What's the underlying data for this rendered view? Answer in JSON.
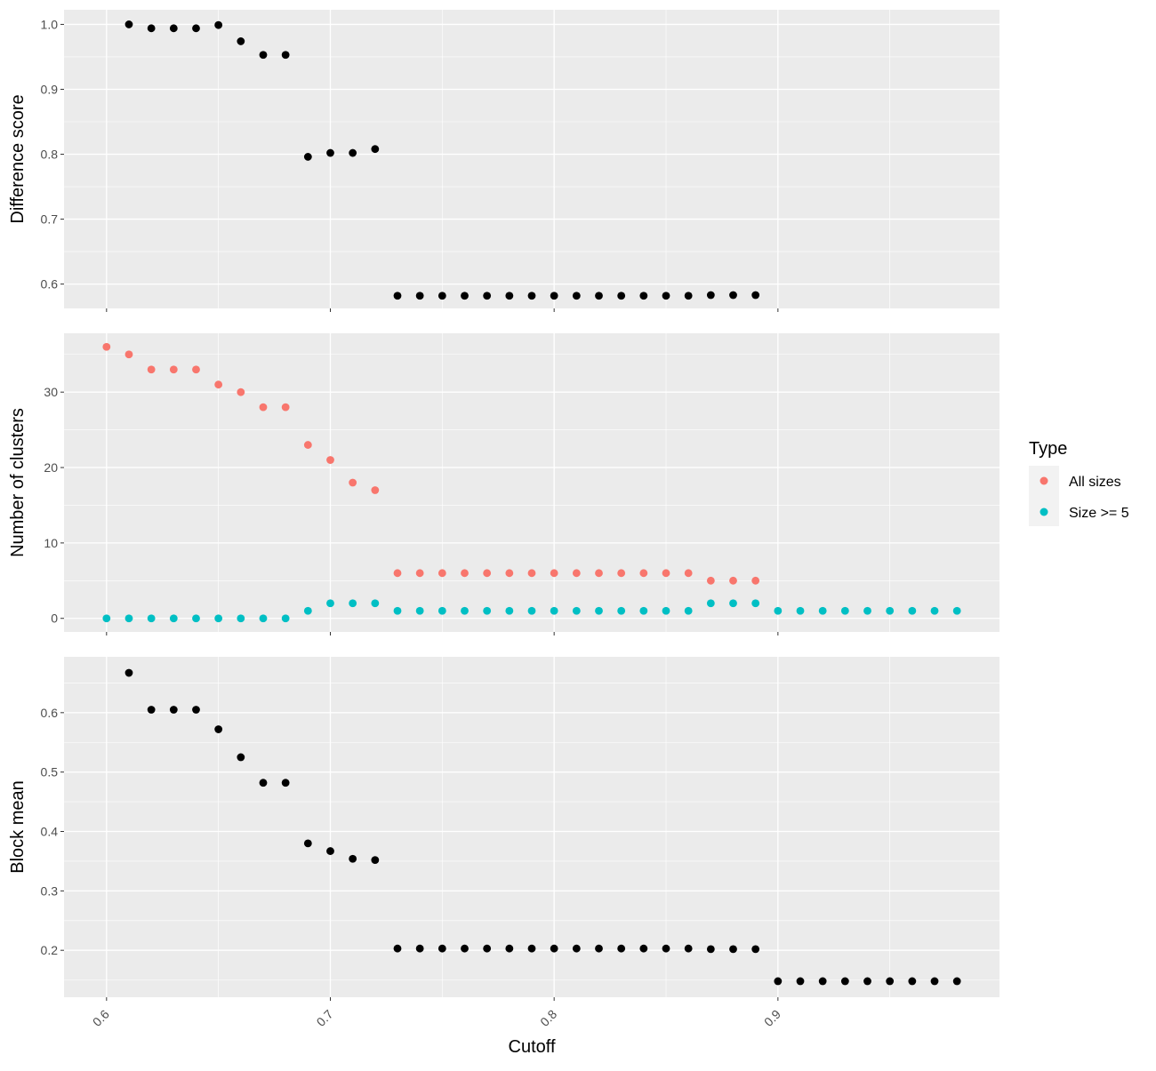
{
  "chart_data": {
    "type": "scatter",
    "layout": "vertical-facets",
    "x_label": "Cutoff",
    "x_ticks": [
      0.6,
      0.7,
      0.8,
      0.9
    ],
    "x_range": [
      0.581,
      0.999
    ],
    "legend": {
      "title": "Type",
      "placement": "right",
      "entries": [
        {
          "label": "All sizes",
          "color": "#F8766D"
        },
        {
          "label": "Size >= 5",
          "color": "#00BFC4"
        }
      ]
    },
    "background": "#EBEBEB",
    "grid": true,
    "panels": [
      {
        "ylabel": "Difference score",
        "ylim": [
          0.5625,
          1.0225
        ],
        "y_ticks": [
          0.6,
          0.7,
          0.8,
          0.9,
          1.0
        ],
        "y_tick_labels": [
          "0.6",
          "0.7",
          "0.8",
          "0.9",
          "1.0"
        ],
        "series": [
          {
            "color": "#000000",
            "x": [
              0.61,
              0.62,
              0.63,
              0.64,
              0.65,
              0.66,
              0.67,
              0.68,
              0.69,
              0.7,
              0.71,
              0.72,
              0.73,
              0.74,
              0.75,
              0.76,
              0.77,
              0.78,
              0.79,
              0.8,
              0.81,
              0.82,
              0.83,
              0.84,
              0.85,
              0.86,
              0.87,
              0.88,
              0.89
            ],
            "y": [
              1.0,
              0.994,
              0.994,
              0.994,
              0.999,
              0.974,
              0.953,
              0.953,
              0.796,
              0.802,
              0.802,
              0.808,
              0.582,
              0.582,
              0.582,
              0.582,
              0.582,
              0.582,
              0.582,
              0.582,
              0.582,
              0.582,
              0.582,
              0.582,
              0.582,
              0.582,
              0.583,
              0.583,
              0.583
            ]
          }
        ]
      },
      {
        "ylabel": "Number of clusters",
        "ylim": [
          -1.8,
          37.8
        ],
        "y_ticks": [
          0,
          10,
          20,
          30
        ],
        "y_tick_labels": [
          "0",
          "10",
          "20",
          "30"
        ],
        "series": [
          {
            "name": "All sizes",
            "color": "#F8766D",
            "x": [
              0.6,
              0.61,
              0.62,
              0.63,
              0.64,
              0.65,
              0.66,
              0.67,
              0.68,
              0.69,
              0.7,
              0.71,
              0.72,
              0.73,
              0.74,
              0.75,
              0.76,
              0.77,
              0.78,
              0.79,
              0.8,
              0.81,
              0.82,
              0.83,
              0.84,
              0.85,
              0.86,
              0.87,
              0.88,
              0.89
            ],
            "y": [
              36,
              35,
              33,
              33,
              33,
              31,
              30,
              28,
              28,
              23,
              21,
              18,
              17,
              6,
              6,
              6,
              6,
              6,
              6,
              6,
              6,
              6,
              6,
              6,
              6,
              6,
              6,
              5,
              5,
              5
            ]
          },
          {
            "name": "Size >= 5",
            "color": "#00BFC4",
            "x": [
              0.6,
              0.61,
              0.62,
              0.63,
              0.64,
              0.65,
              0.66,
              0.67,
              0.68,
              0.69,
              0.7,
              0.71,
              0.72,
              0.73,
              0.74,
              0.75,
              0.76,
              0.77,
              0.78,
              0.79,
              0.8,
              0.81,
              0.82,
              0.83,
              0.84,
              0.85,
              0.86,
              0.87,
              0.88,
              0.89,
              0.9,
              0.91,
              0.92,
              0.93,
              0.94,
              0.95,
              0.96,
              0.97,
              0.98
            ],
            "y": [
              0,
              0,
              0,
              0,
              0,
              0,
              0,
              0,
              0,
              1,
              2,
              2,
              2,
              1,
              1,
              1,
              1,
              1,
              1,
              1,
              1,
              1,
              1,
              1,
              1,
              1,
              1,
              2,
              2,
              2,
              1,
              1,
              1,
              1,
              1,
              1,
              1,
              1,
              1
            ]
          }
        ]
      },
      {
        "ylabel": "Block mean",
        "ylim": [
          0.121,
          0.694
        ],
        "y_ticks": [
          0.2,
          0.3,
          0.4,
          0.5,
          0.6
        ],
        "y_tick_labels": [
          "0.2",
          "0.3",
          "0.4",
          "0.5",
          "0.6"
        ],
        "series": [
          {
            "color": "#000000",
            "x": [
              0.61,
              0.62,
              0.63,
              0.64,
              0.65,
              0.66,
              0.67,
              0.68,
              0.69,
              0.7,
              0.71,
              0.72,
              0.73,
              0.74,
              0.75,
              0.76,
              0.77,
              0.78,
              0.79,
              0.8,
              0.81,
              0.82,
              0.83,
              0.84,
              0.85,
              0.86,
              0.87,
              0.88,
              0.89,
              0.9,
              0.91,
              0.92,
              0.93,
              0.94,
              0.95,
              0.96,
              0.97,
              0.98
            ],
            "y": [
              0.667,
              0.605,
              0.605,
              0.605,
              0.572,
              0.525,
              0.482,
              0.482,
              0.38,
              0.367,
              0.354,
              0.352,
              0.203,
              0.203,
              0.203,
              0.203,
              0.203,
              0.203,
              0.203,
              0.203,
              0.203,
              0.203,
              0.203,
              0.203,
              0.203,
              0.203,
              0.202,
              0.202,
              0.202,
              0.148,
              0.148,
              0.148,
              0.148,
              0.148,
              0.148,
              0.148,
              0.148,
              0.148
            ]
          }
        ]
      }
    ]
  }
}
